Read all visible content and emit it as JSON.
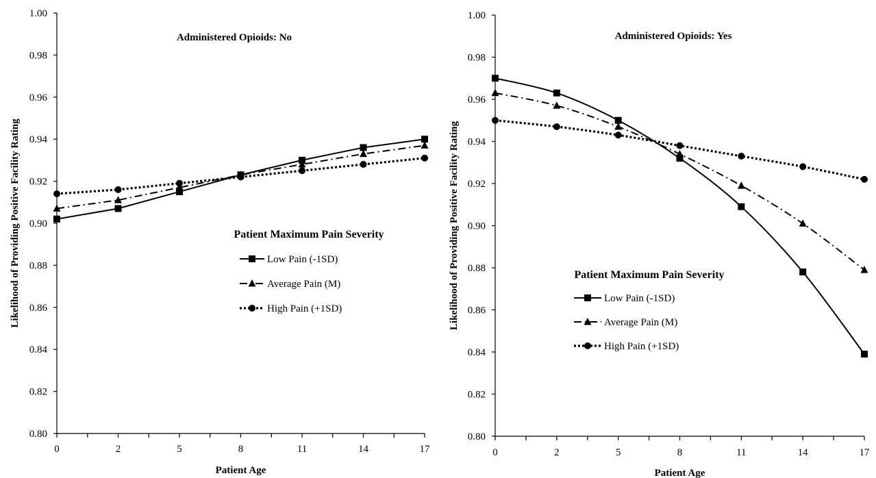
{
  "chart_data": [
    {
      "type": "line",
      "title": "Administered Opioids: No",
      "xlabel": "Patient Age",
      "ylabel": "Likelihood of Providing Positive Facility Rating",
      "x": [
        0,
        2,
        5,
        8,
        11,
        14,
        17
      ],
      "x_tick_labels": [
        "0",
        "2",
        "5",
        "8",
        "11",
        "14",
        "17"
      ],
      "ylim": [
        0.8,
        1.0
      ],
      "y_ticks": [
        "0.80",
        "0.82",
        "0.84",
        "0.86",
        "0.88",
        "0.90",
        "0.92",
        "0.94",
        "0.96",
        "0.98",
        "1.00"
      ],
      "legend_title": "Patient Maximum Pain Severity",
      "legend_placement": "center-right",
      "grid": false,
      "series": [
        {
          "name": "Low Pain (-1SD)",
          "marker": "square",
          "dash": "solid",
          "smooth": false,
          "values": [
            0.902,
            0.907,
            0.915,
            0.923,
            0.93,
            0.936,
            0.94
          ]
        },
        {
          "name": "Average Pain (M)",
          "marker": "triangle",
          "dash": "dashdot",
          "smooth": false,
          "values": [
            0.907,
            0.911,
            0.917,
            0.923,
            0.928,
            0.933,
            0.937
          ]
        },
        {
          "name": "High Pain (+1SD)",
          "marker": "circle",
          "dash": "dotted",
          "smooth": false,
          "values": [
            0.914,
            0.916,
            0.919,
            0.922,
            0.925,
            0.928,
            0.931
          ]
        }
      ]
    },
    {
      "type": "line",
      "title": "Administered Opioids: Yes",
      "xlabel": "Patient Age",
      "ylabel": "Likelihood of Providing Positive Facility Rating",
      "x": [
        0,
        2,
        5,
        8,
        11,
        14,
        17
      ],
      "x_tick_labels": [
        "0",
        "2",
        "5",
        "8",
        "11",
        "14",
        "17"
      ],
      "ylim": [
        0.8,
        1.0
      ],
      "y_ticks": [
        "0.80",
        "0.82",
        "0.84",
        "0.86",
        "0.88",
        "0.90",
        "0.92",
        "0.94",
        "0.96",
        "0.98",
        "1.00"
      ],
      "legend_title": "Patient Maximum Pain Severity",
      "legend_placement": "bottom-center",
      "grid": false,
      "series": [
        {
          "name": "Low Pain (-1SD)",
          "marker": "square",
          "dash": "solid",
          "smooth": true,
          "values": [
            0.97,
            0.963,
            0.95,
            0.932,
            0.909,
            0.878,
            0.839
          ]
        },
        {
          "name": "Average Pain (M)",
          "marker": "triangle",
          "dash": "dashdot",
          "smooth": true,
          "values": [
            0.963,
            0.957,
            0.947,
            0.934,
            0.919,
            0.901,
            0.879
          ]
        },
        {
          "name": "High Pain (+1SD)",
          "marker": "circle",
          "dash": "dotted",
          "smooth": true,
          "values": [
            0.95,
            0.947,
            0.943,
            0.938,
            0.933,
            0.928,
            0.922
          ]
        }
      ]
    }
  ]
}
